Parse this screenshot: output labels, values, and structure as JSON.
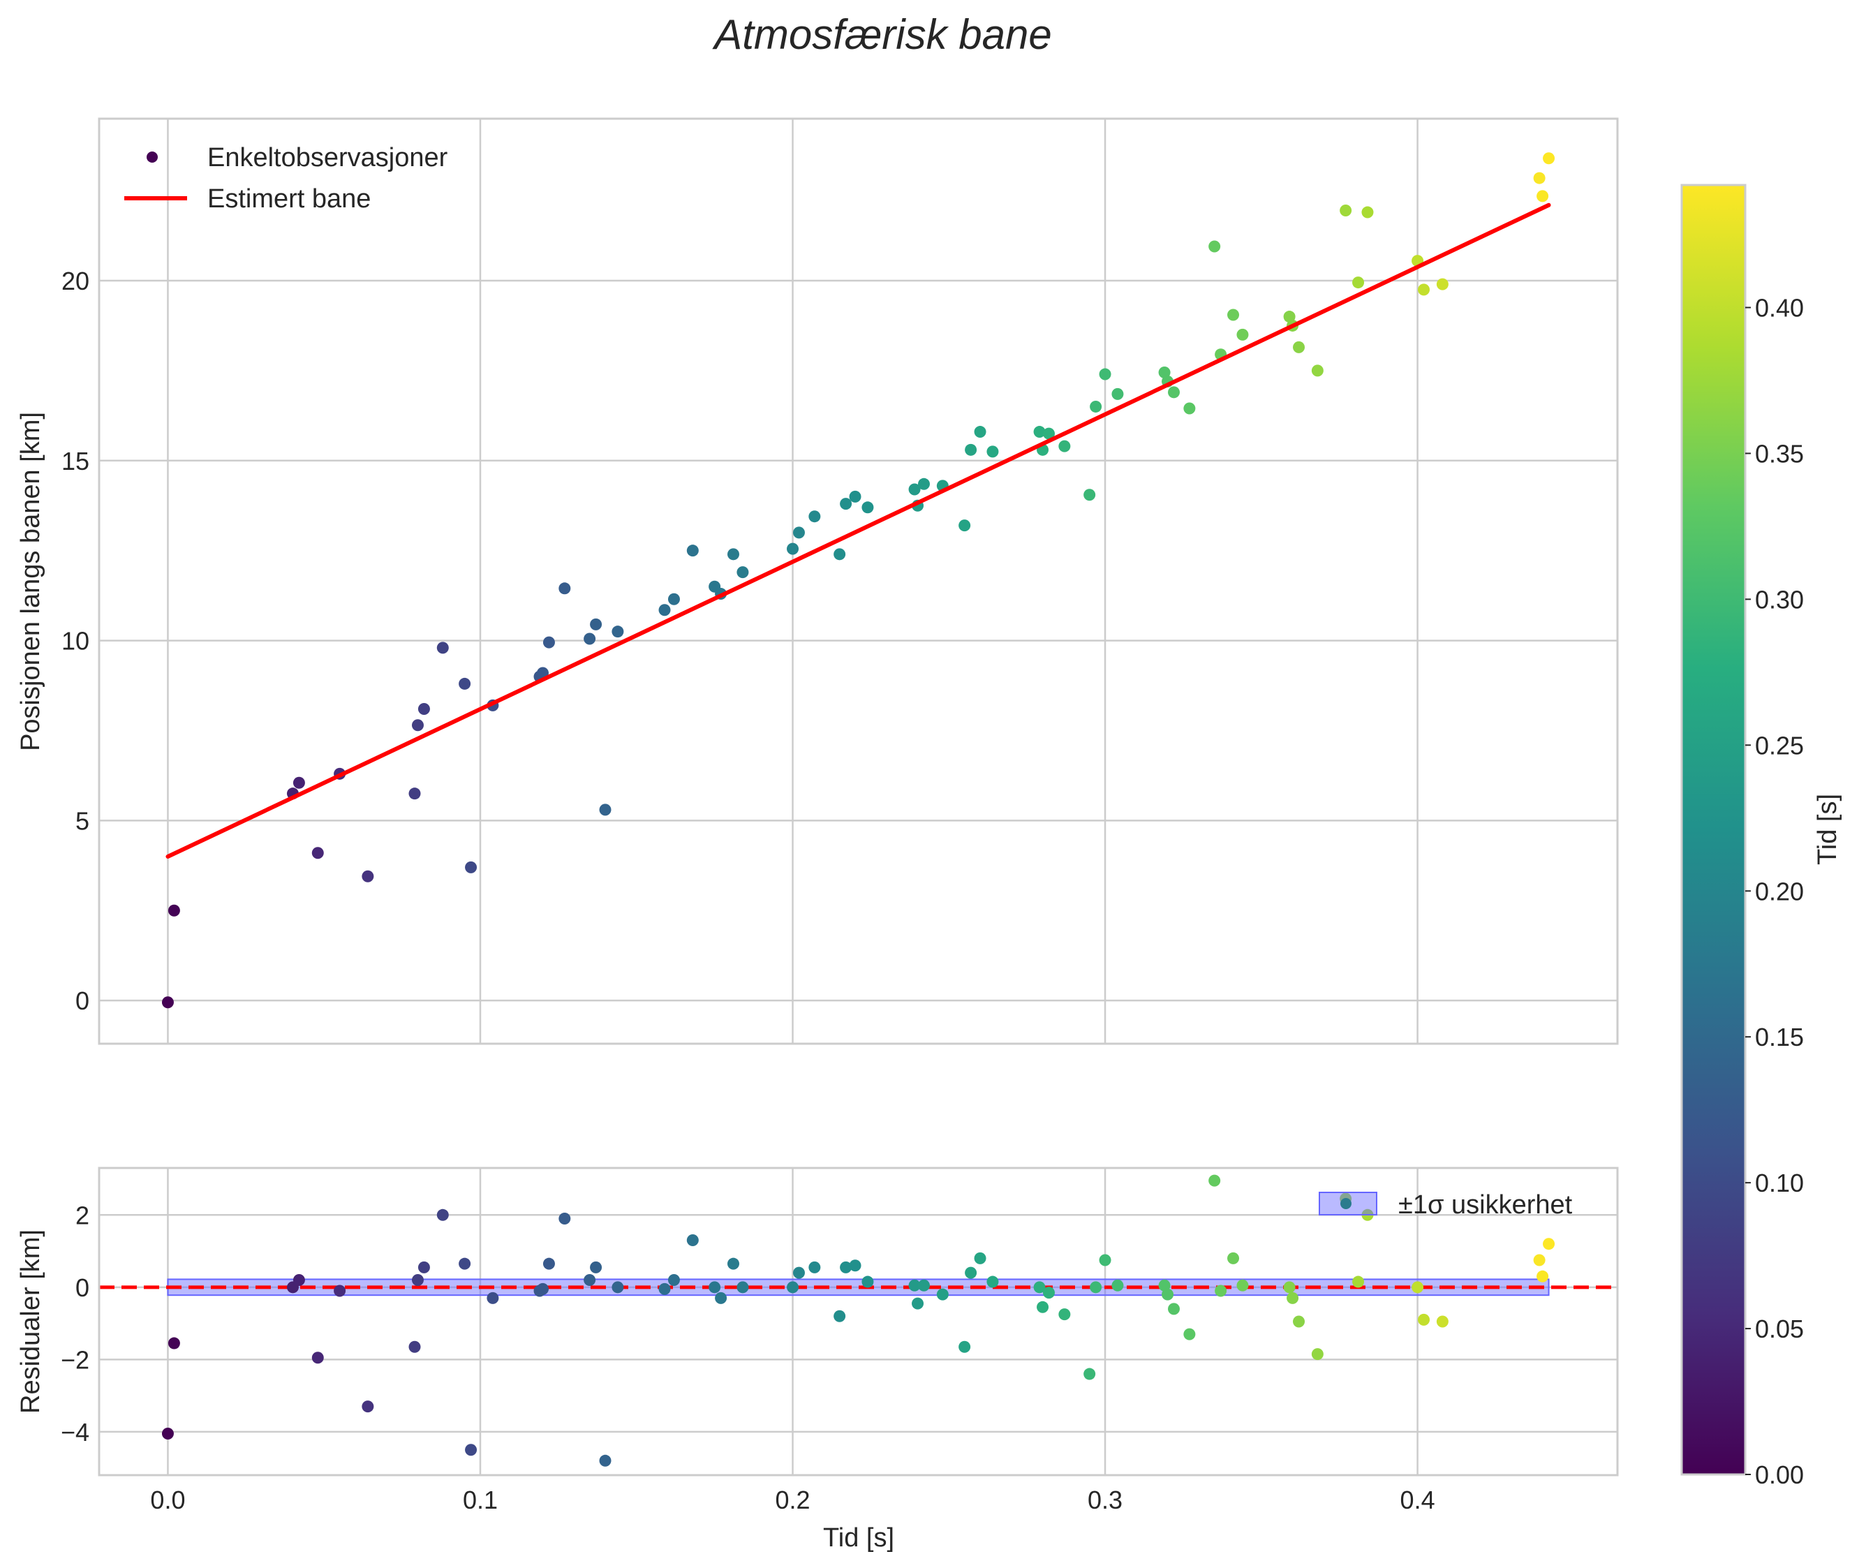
{
  "chart_data": {
    "type": "scatter",
    "title": "Atmosfærisk bane",
    "main_panel": {
      "ylabel": "Posisjonen langs banen [km]",
      "ylim": [
        -1.2,
        24.5
      ],
      "yticks": [
        0,
        5,
        10,
        15,
        20
      ],
      "legend": {
        "placement": "top-left",
        "entries": [
          "Enkeltobservasjoner",
          "Estimert bane"
        ]
      },
      "fit_line": {
        "name": "Estimert bane",
        "color": "#ff0000",
        "t": [
          0.0,
          0.442
        ],
        "y": [
          4.0,
          22.1
        ]
      },
      "points": [
        [
          0.0,
          -0.05
        ],
        [
          0.002,
          2.5
        ],
        [
          0.04,
          5.75
        ],
        [
          0.042,
          6.05
        ],
        [
          0.048,
          4.1
        ],
        [
          0.055,
          6.3
        ],
        [
          0.064,
          3.45
        ],
        [
          0.079,
          5.75
        ],
        [
          0.08,
          7.65
        ],
        [
          0.082,
          8.1
        ],
        [
          0.088,
          9.8
        ],
        [
          0.095,
          8.8
        ],
        [
          0.097,
          3.7
        ],
        [
          0.104,
          8.2
        ],
        [
          0.119,
          9.0
        ],
        [
          0.12,
          9.1
        ],
        [
          0.122,
          9.95
        ],
        [
          0.127,
          11.45
        ],
        [
          0.135,
          10.05
        ],
        [
          0.137,
          10.45
        ],
        [
          0.14,
          5.3
        ],
        [
          0.144,
          10.25
        ],
        [
          0.159,
          10.85
        ],
        [
          0.162,
          11.15
        ],
        [
          0.168,
          12.5
        ],
        [
          0.175,
          11.5
        ],
        [
          0.177,
          11.3
        ],
        [
          0.181,
          12.4
        ],
        [
          0.184,
          11.9
        ],
        [
          0.2,
          12.55
        ],
        [
          0.202,
          13.0
        ],
        [
          0.207,
          13.45
        ],
        [
          0.215,
          12.4
        ],
        [
          0.217,
          13.8
        ],
        [
          0.22,
          14.0
        ],
        [
          0.224,
          13.7
        ],
        [
          0.239,
          14.2
        ],
        [
          0.24,
          13.75
        ],
        [
          0.242,
          14.35
        ],
        [
          0.248,
          14.3
        ],
        [
          0.255,
          13.2
        ],
        [
          0.257,
          15.3
        ],
        [
          0.26,
          15.8
        ],
        [
          0.264,
          15.25
        ],
        [
          0.279,
          15.8
        ],
        [
          0.28,
          15.3
        ],
        [
          0.282,
          15.75
        ],
        [
          0.287,
          15.4
        ],
        [
          0.295,
          14.05
        ],
        [
          0.297,
          16.5
        ],
        [
          0.3,
          17.4
        ],
        [
          0.304,
          16.85
        ],
        [
          0.319,
          17.45
        ],
        [
          0.32,
          17.2
        ],
        [
          0.322,
          16.9
        ],
        [
          0.327,
          16.45
        ],
        [
          0.335,
          20.95
        ],
        [
          0.337,
          17.95
        ],
        [
          0.341,
          19.05
        ],
        [
          0.344,
          18.5
        ],
        [
          0.359,
          19.0
        ],
        [
          0.36,
          18.75
        ],
        [
          0.362,
          18.15
        ],
        [
          0.368,
          17.5
        ],
        [
          0.377,
          21.95
        ],
        [
          0.381,
          19.95
        ],
        [
          0.384,
          21.9
        ],
        [
          0.4,
          20.55
        ],
        [
          0.402,
          19.75
        ],
        [
          0.408,
          19.9
        ],
        [
          0.439,
          22.85
        ],
        [
          0.44,
          22.35
        ],
        [
          0.442,
          23.4
        ]
      ]
    },
    "residual_panel": {
      "ylabel": "Residualer [km]",
      "ylim": [
        -5.2,
        3.3
      ],
      "yticks": [
        -4,
        -2,
        0,
        2
      ],
      "zero_line": {
        "y": 0,
        "color": "#ff0000",
        "style": "dashed"
      },
      "band": {
        "name": "±1σ usikkerhet",
        "sigma": 0.22,
        "color": "#6666ff"
      },
      "legend": {
        "placement": "top-right",
        "entries": [
          "±1σ usikkerhet"
        ]
      },
      "points": [
        [
          0.0,
          -4.05
        ],
        [
          0.002,
          -1.55
        ],
        [
          0.04,
          0.0
        ],
        [
          0.042,
          0.2
        ],
        [
          0.048,
          -1.95
        ],
        [
          0.055,
          -0.1
        ],
        [
          0.064,
          -3.3
        ],
        [
          0.079,
          -1.65
        ],
        [
          0.08,
          0.2
        ],
        [
          0.082,
          0.55
        ],
        [
          0.088,
          2.0
        ],
        [
          0.095,
          0.65
        ],
        [
          0.097,
          -4.5
        ],
        [
          0.104,
          -0.3
        ],
        [
          0.119,
          -0.1
        ],
        [
          0.12,
          -0.05
        ],
        [
          0.122,
          0.65
        ],
        [
          0.127,
          1.9
        ],
        [
          0.135,
          0.2
        ],
        [
          0.137,
          0.55
        ],
        [
          0.14,
          -4.8
        ],
        [
          0.144,
          0.0
        ],
        [
          0.159,
          -0.05
        ],
        [
          0.162,
          0.2
        ],
        [
          0.168,
          1.3
        ],
        [
          0.175,
          0.0
        ],
        [
          0.177,
          -0.3
        ],
        [
          0.181,
          0.65
        ],
        [
          0.184,
          0.0
        ],
        [
          0.2,
          0.0
        ],
        [
          0.202,
          0.4
        ],
        [
          0.207,
          0.55
        ],
        [
          0.215,
          -0.8
        ],
        [
          0.217,
          0.55
        ],
        [
          0.22,
          0.6
        ],
        [
          0.224,
          0.15
        ],
        [
          0.239,
          0.05
        ],
        [
          0.24,
          -0.45
        ],
        [
          0.242,
          0.05
        ],
        [
          0.248,
          -0.2
        ],
        [
          0.255,
          -1.65
        ],
        [
          0.257,
          0.4
        ],
        [
          0.26,
          0.8
        ],
        [
          0.264,
          0.15
        ],
        [
          0.279,
          0.0
        ],
        [
          0.28,
          -0.55
        ],
        [
          0.282,
          -0.15
        ],
        [
          0.287,
          -0.75
        ],
        [
          0.295,
          -2.4
        ],
        [
          0.297,
          0.0
        ],
        [
          0.3,
          0.75
        ],
        [
          0.304,
          0.05
        ],
        [
          0.319,
          0.05
        ],
        [
          0.32,
          -0.2
        ],
        [
          0.322,
          -0.6
        ],
        [
          0.327,
          -1.3
        ],
        [
          0.335,
          2.95
        ],
        [
          0.337,
          -0.1
        ],
        [
          0.341,
          0.8
        ],
        [
          0.344,
          0.05
        ],
        [
          0.359,
          0.0
        ],
        [
          0.36,
          -0.3
        ],
        [
          0.362,
          -0.95
        ],
        [
          0.368,
          -1.85
        ],
        [
          0.377,
          2.45
        ],
        [
          0.381,
          0.15
        ],
        [
          0.384,
          2.0
        ],
        [
          0.4,
          0.0
        ],
        [
          0.402,
          -0.9
        ],
        [
          0.408,
          -0.95
        ],
        [
          0.439,
          0.75
        ],
        [
          0.44,
          0.3
        ],
        [
          0.442,
          1.2
        ]
      ]
    },
    "xaxis": {
      "label": "Tid [s]",
      "xlim": [
        -0.022,
        0.464
      ],
      "ticks": [
        0.0,
        0.1,
        0.2,
        0.3,
        0.4
      ],
      "tick_labels": [
        "0.0",
        "0.1",
        "0.2",
        "0.3",
        "0.4"
      ]
    },
    "colorbar": {
      "label": "Tid [s]",
      "colormap": "viridis",
      "range": [
        0.0,
        0.442
      ],
      "ticks": [
        0.0,
        0.05,
        0.1,
        0.15,
        0.2,
        0.25,
        0.3,
        0.35,
        0.4
      ],
      "tick_labels": [
        "0.00",
        "0.05",
        "0.10",
        "0.15",
        "0.20",
        "0.25",
        "0.30",
        "0.35",
        "0.40"
      ]
    },
    "grid": true
  }
}
